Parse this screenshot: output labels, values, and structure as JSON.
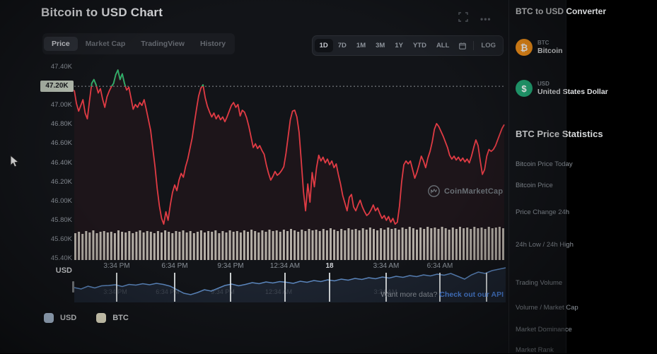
{
  "page": {
    "title": "Bitcoin to USD Chart"
  },
  "tabs": [
    {
      "label": "Price",
      "active": true
    },
    {
      "label": "Market Cap",
      "active": false
    },
    {
      "label": "TradingView",
      "active": false
    },
    {
      "label": "History",
      "active": false
    }
  ],
  "ranges": [
    {
      "label": "1D",
      "active": true
    },
    {
      "label": "7D",
      "active": false
    },
    {
      "label": "1M",
      "active": false
    },
    {
      "label": "3M",
      "active": false
    },
    {
      "label": "1Y",
      "active": false
    },
    {
      "label": "YTD",
      "active": false
    },
    {
      "label": "ALL",
      "active": false
    }
  ],
  "log_label": "LOG",
  "watermark": {
    "label": "CoinMarketCap"
  },
  "footer": {
    "prompt": "Want more data?",
    "link": "Check out our API"
  },
  "legend": [
    {
      "label": "USD",
      "color": "#b8cde6"
    },
    {
      "label": "BTC",
      "color": "#efeacf"
    }
  ],
  "sidebar": {
    "converter_title": "BTC to USD Converter",
    "coins": [
      {
        "symbol": "BTC",
        "name": "Bitcoin",
        "color": "#f7931a",
        "glyph": "₿"
      },
      {
        "symbol": "USD",
        "name": "United States Dollar",
        "color": "#23a776",
        "glyph": "$"
      }
    ],
    "stats_title": "BTC Price Statistics",
    "stats_rows": [
      "Bitcoin Price Today",
      "Bitcoin Price",
      "Price Change 24h",
      "24h Low / 24h High",
      "Trading Volume",
      "Volume / Market Cap",
      "Market Dominance",
      "Market Rank"
    ]
  },
  "chart_data": {
    "type": "line",
    "title": "Bitcoin to USD Chart",
    "unit": "USD",
    "axis_unit_label": "USD",
    "y_max": 47400,
    "y_min": 45400,
    "ref_price": 47200,
    "current_price_label": "47.20K",
    "up_color": "#27b06a",
    "down_color": "#e03b44",
    "y_ticks": [
      "47.40K",
      "47.20K",
      "47.00K",
      "46.80K",
      "46.60K",
      "46.40K",
      "46.20K",
      "46.00K",
      "45.80K",
      "45.60K",
      "45.40K"
    ],
    "x_ticks": [
      {
        "x": 165,
        "label": "3:34 PM",
        "strong": false
      },
      {
        "x": 247,
        "label": "6:34 PM",
        "strong": false
      },
      {
        "x": 326,
        "label": "9:34 PM",
        "strong": false
      },
      {
        "x": 403,
        "label": "12:34 AM",
        "strong": false
      },
      {
        "x": 466,
        "label": "18",
        "strong": true
      },
      {
        "x": 546,
        "label": "3:34 AM",
        "strong": false
      },
      {
        "x": 622,
        "label": "6:34 AM",
        "strong": false
      },
      {
        "x": 688,
        "label": "",
        "strong": false
      }
    ],
    "navigator_ghost_labels": [
      {
        "x": 163,
        "label": "3:34 PM"
      },
      {
        "x": 237,
        "label": "6:34 PM"
      },
      {
        "x": 315,
        "label": "9:34 PM"
      },
      {
        "x": 394,
        "label": "12:34 AM"
      },
      {
        "x": 545,
        "label": "3:34 AM"
      }
    ],
    "prices": [
      47160,
      47020,
      46940,
      47000,
      47060,
      46920,
      46860,
      47050,
      47230,
      47270,
      47215,
      47130,
      47175,
      47065,
      46980,
      47090,
      47150,
      47195,
      47230,
      47320,
      47370,
      47270,
      47330,
      47230,
      47160,
      47190,
      47080,
      46960,
      47010,
      46980,
      47030,
      47000,
      47060,
      46960,
      46850,
      46740,
      46550,
      46360,
      46130,
      45950,
      45820,
      45760,
      45890,
      45800,
      45960,
      46090,
      46170,
      46110,
      46220,
      46290,
      46250,
      46360,
      46440,
      46550,
      46660,
      46810,
      46960,
      47100,
      47180,
      47215,
      47080,
      46990,
      46930,
      46880,
      46920,
      46860,
      46900,
      46850,
      46880,
      46830,
      46880,
      46940,
      47000,
      47030,
      46980,
      47010,
      46890,
      46950,
      46930,
      46870,
      46780,
      46670,
      46560,
      46600,
      46550,
      46580,
      46530,
      46490,
      46380,
      46290,
      46220,
      46260,
      46310,
      46270,
      46290,
      46320,
      46360,
      46500,
      46680,
      46850,
      46940,
      46950,
      46880,
      46720,
      46420,
      46100,
      45900,
      46180,
      45990,
      46300,
      46150,
      46350,
      46480,
      46420,
      46460,
      46400,
      46440,
      46380,
      46420,
      46350,
      46390,
      46280,
      46180,
      46060,
      45980,
      45900,
      46040,
      46070,
      45940,
      45900,
      45960,
      46010,
      45940,
      45890,
      45850,
      45870,
      45910,
      45960,
      45900,
      45930,
      45870,
      45820,
      45850,
      45800,
      45840,
      45780,
      45820,
      45760,
      45780,
      45950,
      46200,
      46380,
      46420,
      46390,
      46420,
      46330,
      46240,
      46300,
      46380,
      46470,
      46420,
      46350,
      46450,
      46520,
      46620,
      46750,
      46810,
      46780,
      46730,
      46680,
      46620,
      46560,
      46480,
      46440,
      46470,
      46430,
      46460,
      46420,
      46450,
      46410,
      46440,
      46400,
      46470,
      46560,
      46640,
      46580,
      46420,
      46280,
      46330,
      46470,
      46540,
      46520,
      46540,
      46580,
      46640,
      46700,
      46760,
      46800
    ],
    "volume_color": "#c9cdc2",
    "volumes": [
      38,
      40,
      37,
      41,
      39,
      42,
      38,
      40,
      41,
      39,
      40,
      38,
      42,
      40,
      39,
      41,
      38,
      40,
      42,
      39,
      41,
      40,
      38,
      41,
      39,
      42,
      40,
      38,
      41,
      40,
      42,
      39,
      41,
      38,
      40,
      42,
      39,
      41,
      40,
      42,
      38,
      41,
      39,
      42,
      40,
      41,
      39,
      42,
      40,
      43,
      41,
      39,
      42,
      40,
      43,
      41,
      42,
      40,
      43,
      41,
      44,
      42,
      40,
      43,
      41,
      44,
      42,
      43,
      41,
      44,
      42,
      45,
      43,
      41,
      44,
      42,
      45,
      43,
      44,
      42,
      45,
      43,
      46,
      44,
      42,
      45,
      43,
      46,
      44,
      45,
      43,
      46,
      44,
      47,
      45,
      43,
      46,
      44,
      47,
      45,
      46,
      44,
      47,
      45,
      43,
      46,
      44,
      47,
      45,
      46,
      44,
      47,
      45,
      46,
      44,
      47,
      45,
      46,
      47,
      45
    ],
    "navigator_color": "#5b86bd",
    "navigator_values": [
      0.66,
      0.7,
      0.62,
      0.67,
      0.61,
      0.6,
      0.58,
      0.63,
      0.57,
      0.59,
      0.55,
      0.58,
      0.54,
      0.57,
      0.62,
      0.72,
      0.82,
      0.86,
      0.8,
      0.72,
      0.76,
      0.68,
      0.6,
      0.56,
      0.61,
      0.57,
      0.52,
      0.55,
      0.5,
      0.53,
      0.49,
      0.51,
      0.54,
      0.48,
      0.51,
      0.46,
      0.49,
      0.44,
      0.47,
      0.42,
      0.45,
      0.4,
      0.43,
      0.38,
      0.41,
      0.36,
      0.39,
      0.34,
      0.37,
      0.32,
      0.35,
      0.3,
      0.33,
      0.28,
      0.31,
      0.26,
      0.34,
      0.42,
      0.3,
      0.22,
      0.26,
      0.18,
      0.14,
      0.1
    ],
    "navigator_tick_xs": [
      165,
      247,
      326,
      403,
      466,
      546,
      622,
      688
    ],
    "legend_position": "bottom-left",
    "grid": "off"
  }
}
